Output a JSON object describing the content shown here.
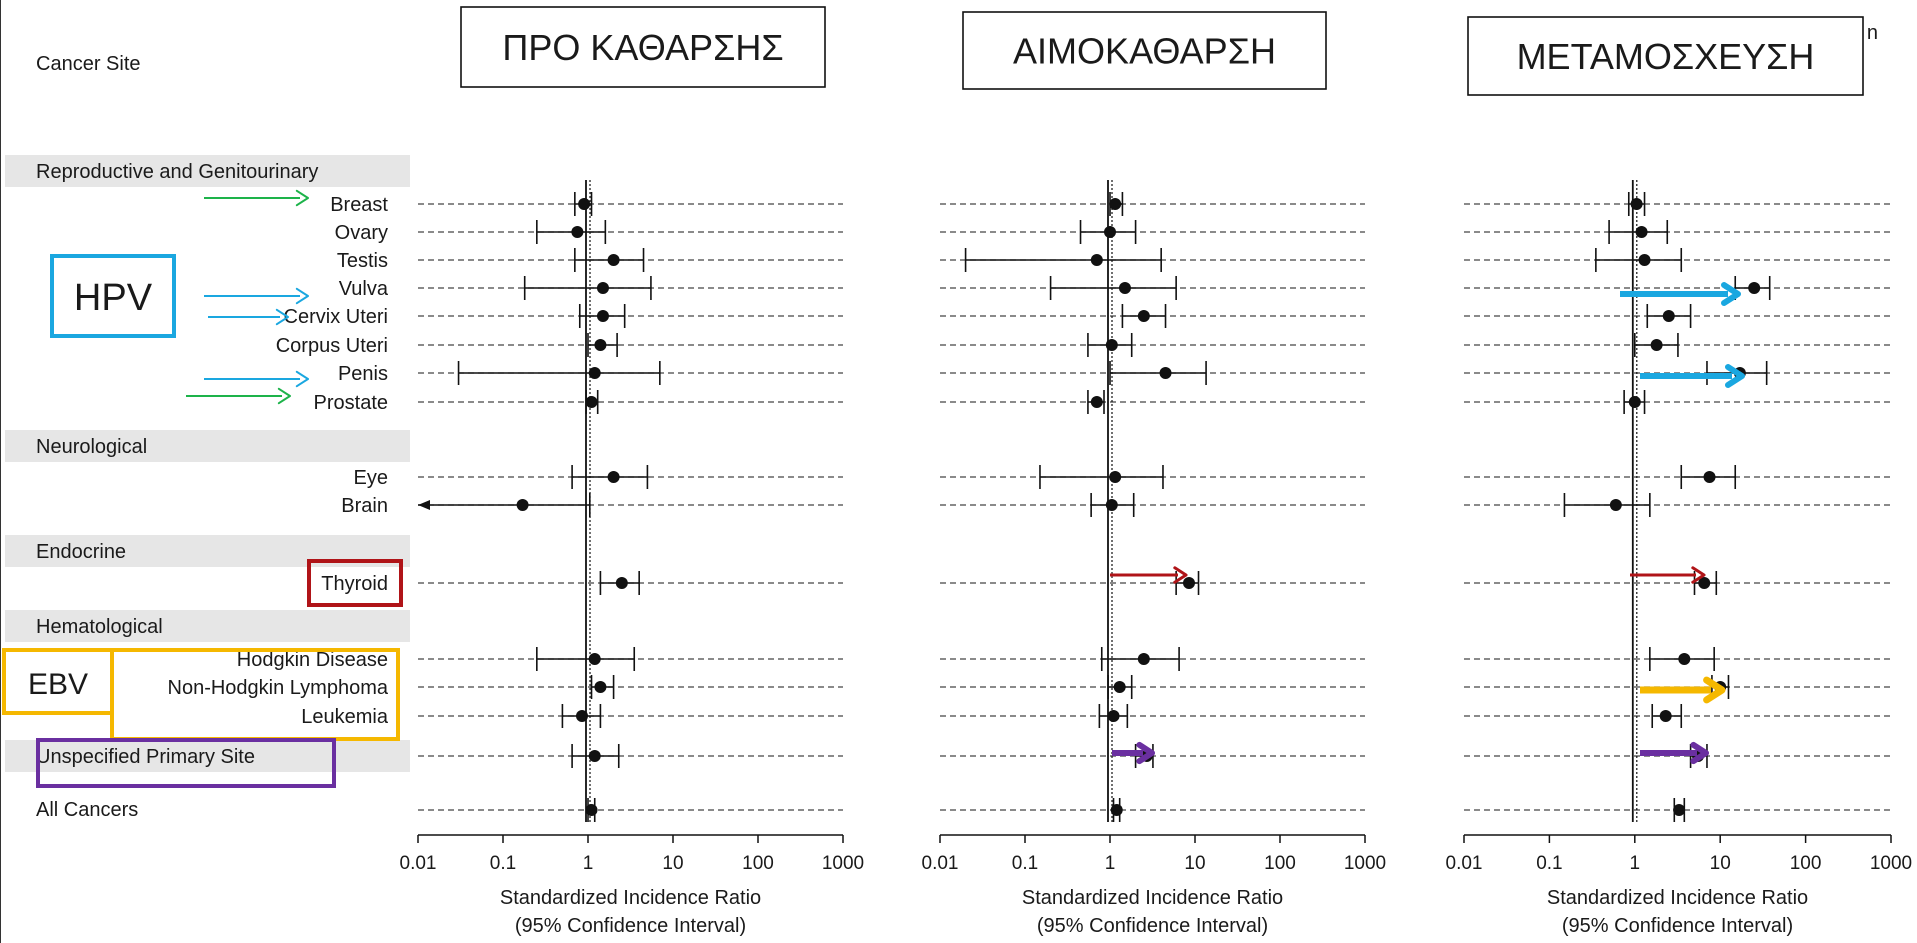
{
  "header": {
    "column_label": "Cancer Site",
    "corner_fragment": "n",
    "panel_titles": [
      "ΠΡΟ ΚΑΘΑΡΣΗΣ",
      "ΑΙΜΟΚΑΘΑΡΣΗ",
      "ΜΕΤΑΜΟΣΧΕΥΣΗ"
    ]
  },
  "annotations": {
    "hpv": "HPV",
    "ebv": "EBV"
  },
  "colors": {
    "green": "#1db34a",
    "cyan": "#1aa7e0",
    "red": "#b01418",
    "orange": "#f5b800",
    "purple": "#6a2fa0",
    "group_band": "#e6e6e6"
  },
  "chart_data": {
    "type": "forest",
    "scale": "log",
    "xlim": [
      0.01,
      1000
    ],
    "xticks": [
      "0.01",
      "0.1",
      "1",
      "10",
      "100",
      "1000"
    ],
    "xlabel_line1": "Standardized Incidence Ratio",
    "xlabel_line2": "(95% Confidence Interval)",
    "groups": [
      "Reproductive and Genitourinary",
      "Neurological",
      "Endocrine",
      "Hematological",
      "Unspecified Primary Site",
      "All Cancers"
    ],
    "rows": [
      {
        "label": "Breast",
        "group": "Reproductive and Genitourinary"
      },
      {
        "label": "Ovary",
        "group": "Reproductive and Genitourinary"
      },
      {
        "label": "Testis",
        "group": "Reproductive and Genitourinary"
      },
      {
        "label": "Vulva",
        "group": "Reproductive and Genitourinary"
      },
      {
        "label": "Cervix Uteri",
        "group": "Reproductive and Genitourinary"
      },
      {
        "label": "Corpus Uteri",
        "group": "Reproductive and Genitourinary"
      },
      {
        "label": "Penis",
        "group": "Reproductive and Genitourinary"
      },
      {
        "label": "Prostate",
        "group": "Reproductive and Genitourinary"
      },
      {
        "label": "Eye",
        "group": "Neurological"
      },
      {
        "label": "Brain",
        "group": "Neurological"
      },
      {
        "label": "Thyroid",
        "group": "Endocrine"
      },
      {
        "label": "Hodgkin Disease",
        "group": "Hematological"
      },
      {
        "label": "Non-Hodgkin Lymphoma",
        "group": "Hematological"
      },
      {
        "label": "Leukemia",
        "group": "Hematological"
      },
      {
        "label": "",
        "group": "Unspecified Primary Site"
      },
      {
        "label": "",
        "group": "All Cancers"
      }
    ],
    "panels": [
      {
        "title": "ΠΡΟ ΚΑΘΑΡΣΗΣ",
        "points": [
          {
            "est": 0.9,
            "lo": 0.7,
            "hi": 1.1
          },
          {
            "est": 0.75,
            "lo": 0.25,
            "hi": 1.6
          },
          {
            "est": 2.0,
            "lo": 0.7,
            "hi": 4.5
          },
          {
            "est": 1.5,
            "lo": 0.18,
            "hi": 5.5
          },
          {
            "est": 1.5,
            "lo": 0.8,
            "hi": 2.7
          },
          {
            "est": 1.4,
            "lo": 1.0,
            "hi": 2.2
          },
          {
            "est": 1.2,
            "lo": 0.03,
            "hi": 7.0
          },
          {
            "est": 1.1,
            "lo": 0.95,
            "hi": 1.3
          },
          {
            "est": 2.0,
            "lo": 0.65,
            "hi": 5.0
          },
          {
            "est": 0.17,
            "lo": 0.01,
            "hi": 1.05,
            "lo_arrow": true
          },
          {
            "est": 2.5,
            "lo": 1.4,
            "hi": 4.0
          },
          {
            "est": 1.2,
            "lo": 0.25,
            "hi": 3.5
          },
          {
            "est": 1.4,
            "lo": 1.1,
            "hi": 2.0
          },
          {
            "est": 0.85,
            "lo": 0.5,
            "hi": 1.4
          },
          {
            "est": 1.2,
            "lo": 0.65,
            "hi": 2.3
          },
          {
            "est": 1.1,
            "lo": 1.0,
            "hi": 1.2
          }
        ]
      },
      {
        "title": "ΑΙΜΟΚΑΘΑΡΣΗ",
        "points": [
          {
            "est": 1.15,
            "lo": 1.0,
            "hi": 1.4
          },
          {
            "est": 1.0,
            "lo": 0.45,
            "hi": 2.0
          },
          {
            "est": 0.7,
            "lo": 0.02,
            "hi": 4.0
          },
          {
            "est": 1.5,
            "lo": 0.2,
            "hi": 6.0
          },
          {
            "est": 2.5,
            "lo": 1.4,
            "hi": 4.5
          },
          {
            "est": 1.05,
            "lo": 0.55,
            "hi": 1.8
          },
          {
            "est": 4.5,
            "lo": 1.0,
            "hi": 13.5
          },
          {
            "est": 0.7,
            "lo": 0.55,
            "hi": 0.85
          },
          {
            "est": 1.15,
            "lo": 0.15,
            "hi": 4.2
          },
          {
            "est": 1.05,
            "lo": 0.6,
            "hi": 1.9
          },
          {
            "est": 8.5,
            "lo": 6.0,
            "hi": 11.0
          },
          {
            "est": 2.5,
            "lo": 0.8,
            "hi": 6.5
          },
          {
            "est": 1.3,
            "lo": 0.95,
            "hi": 1.8
          },
          {
            "est": 1.1,
            "lo": 0.75,
            "hi": 1.6
          },
          {
            "est": 2.7,
            "lo": 2.0,
            "hi": 3.2
          },
          {
            "est": 1.2,
            "lo": 1.1,
            "hi": 1.3
          }
        ]
      },
      {
        "title": "ΜΕΤΑΜΟΣΧΕΥΣΗ",
        "points": [
          {
            "est": 1.05,
            "lo": 0.85,
            "hi": 1.3
          },
          {
            "est": 1.2,
            "lo": 0.5,
            "hi": 2.4
          },
          {
            "est": 1.3,
            "lo": 0.35,
            "hi": 3.5
          },
          {
            "est": 25,
            "lo": 15,
            "hi": 38
          },
          {
            "est": 2.5,
            "lo": 1.4,
            "hi": 4.5
          },
          {
            "est": 1.8,
            "lo": 1.0,
            "hi": 3.2
          },
          {
            "est": 17,
            "lo": 7.0,
            "hi": 35
          },
          {
            "est": 1.0,
            "lo": 0.75,
            "hi": 1.3
          },
          {
            "est": 7.5,
            "lo": 3.5,
            "hi": 15
          },
          {
            "est": 0.6,
            "lo": 0.15,
            "hi": 1.5
          },
          {
            "est": 6.5,
            "lo": 5.0,
            "hi": 9.0
          },
          {
            "est": 3.8,
            "lo": 1.5,
            "hi": 8.5
          },
          {
            "est": 10,
            "lo": 8.0,
            "hi": 12.5
          },
          {
            "est": 2.3,
            "lo": 1.6,
            "hi": 3.5
          },
          {
            "est": 5.5,
            "lo": 4.5,
            "hi": 7.0
          },
          {
            "est": 3.3,
            "lo": 2.9,
            "hi": 3.8
          }
        ]
      }
    ]
  }
}
